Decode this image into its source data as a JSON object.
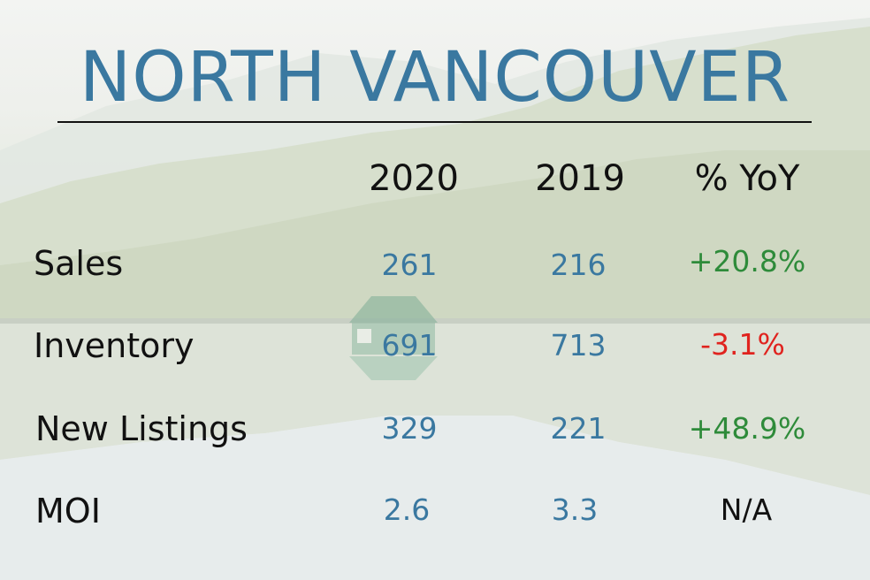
{
  "title": "NORTH VANCOUVER",
  "columns": [
    "2020",
    "2019",
    "% YoY"
  ],
  "rows": [
    {
      "label": "Sales",
      "v2020": "261",
      "v2019": "216",
      "yoy": "+20.8%"
    },
    {
      "label": "Inventory",
      "v2020": "691",
      "v2019": "713",
      "yoy": "-3.1%"
    },
    {
      "label": "New Listings",
      "v2020": "329",
      "v2019": "221",
      "yoy": "+48.9%"
    },
    {
      "label": "MOI",
      "v2020": "2.6",
      "v2019": "3.3",
      "yoy": "N/A"
    }
  ],
  "colors": {
    "title": "#3a78a0",
    "value": "#3a78a0",
    "positive": "#2e8b3a",
    "negative": "#e0231e",
    "text": "#111111"
  }
}
